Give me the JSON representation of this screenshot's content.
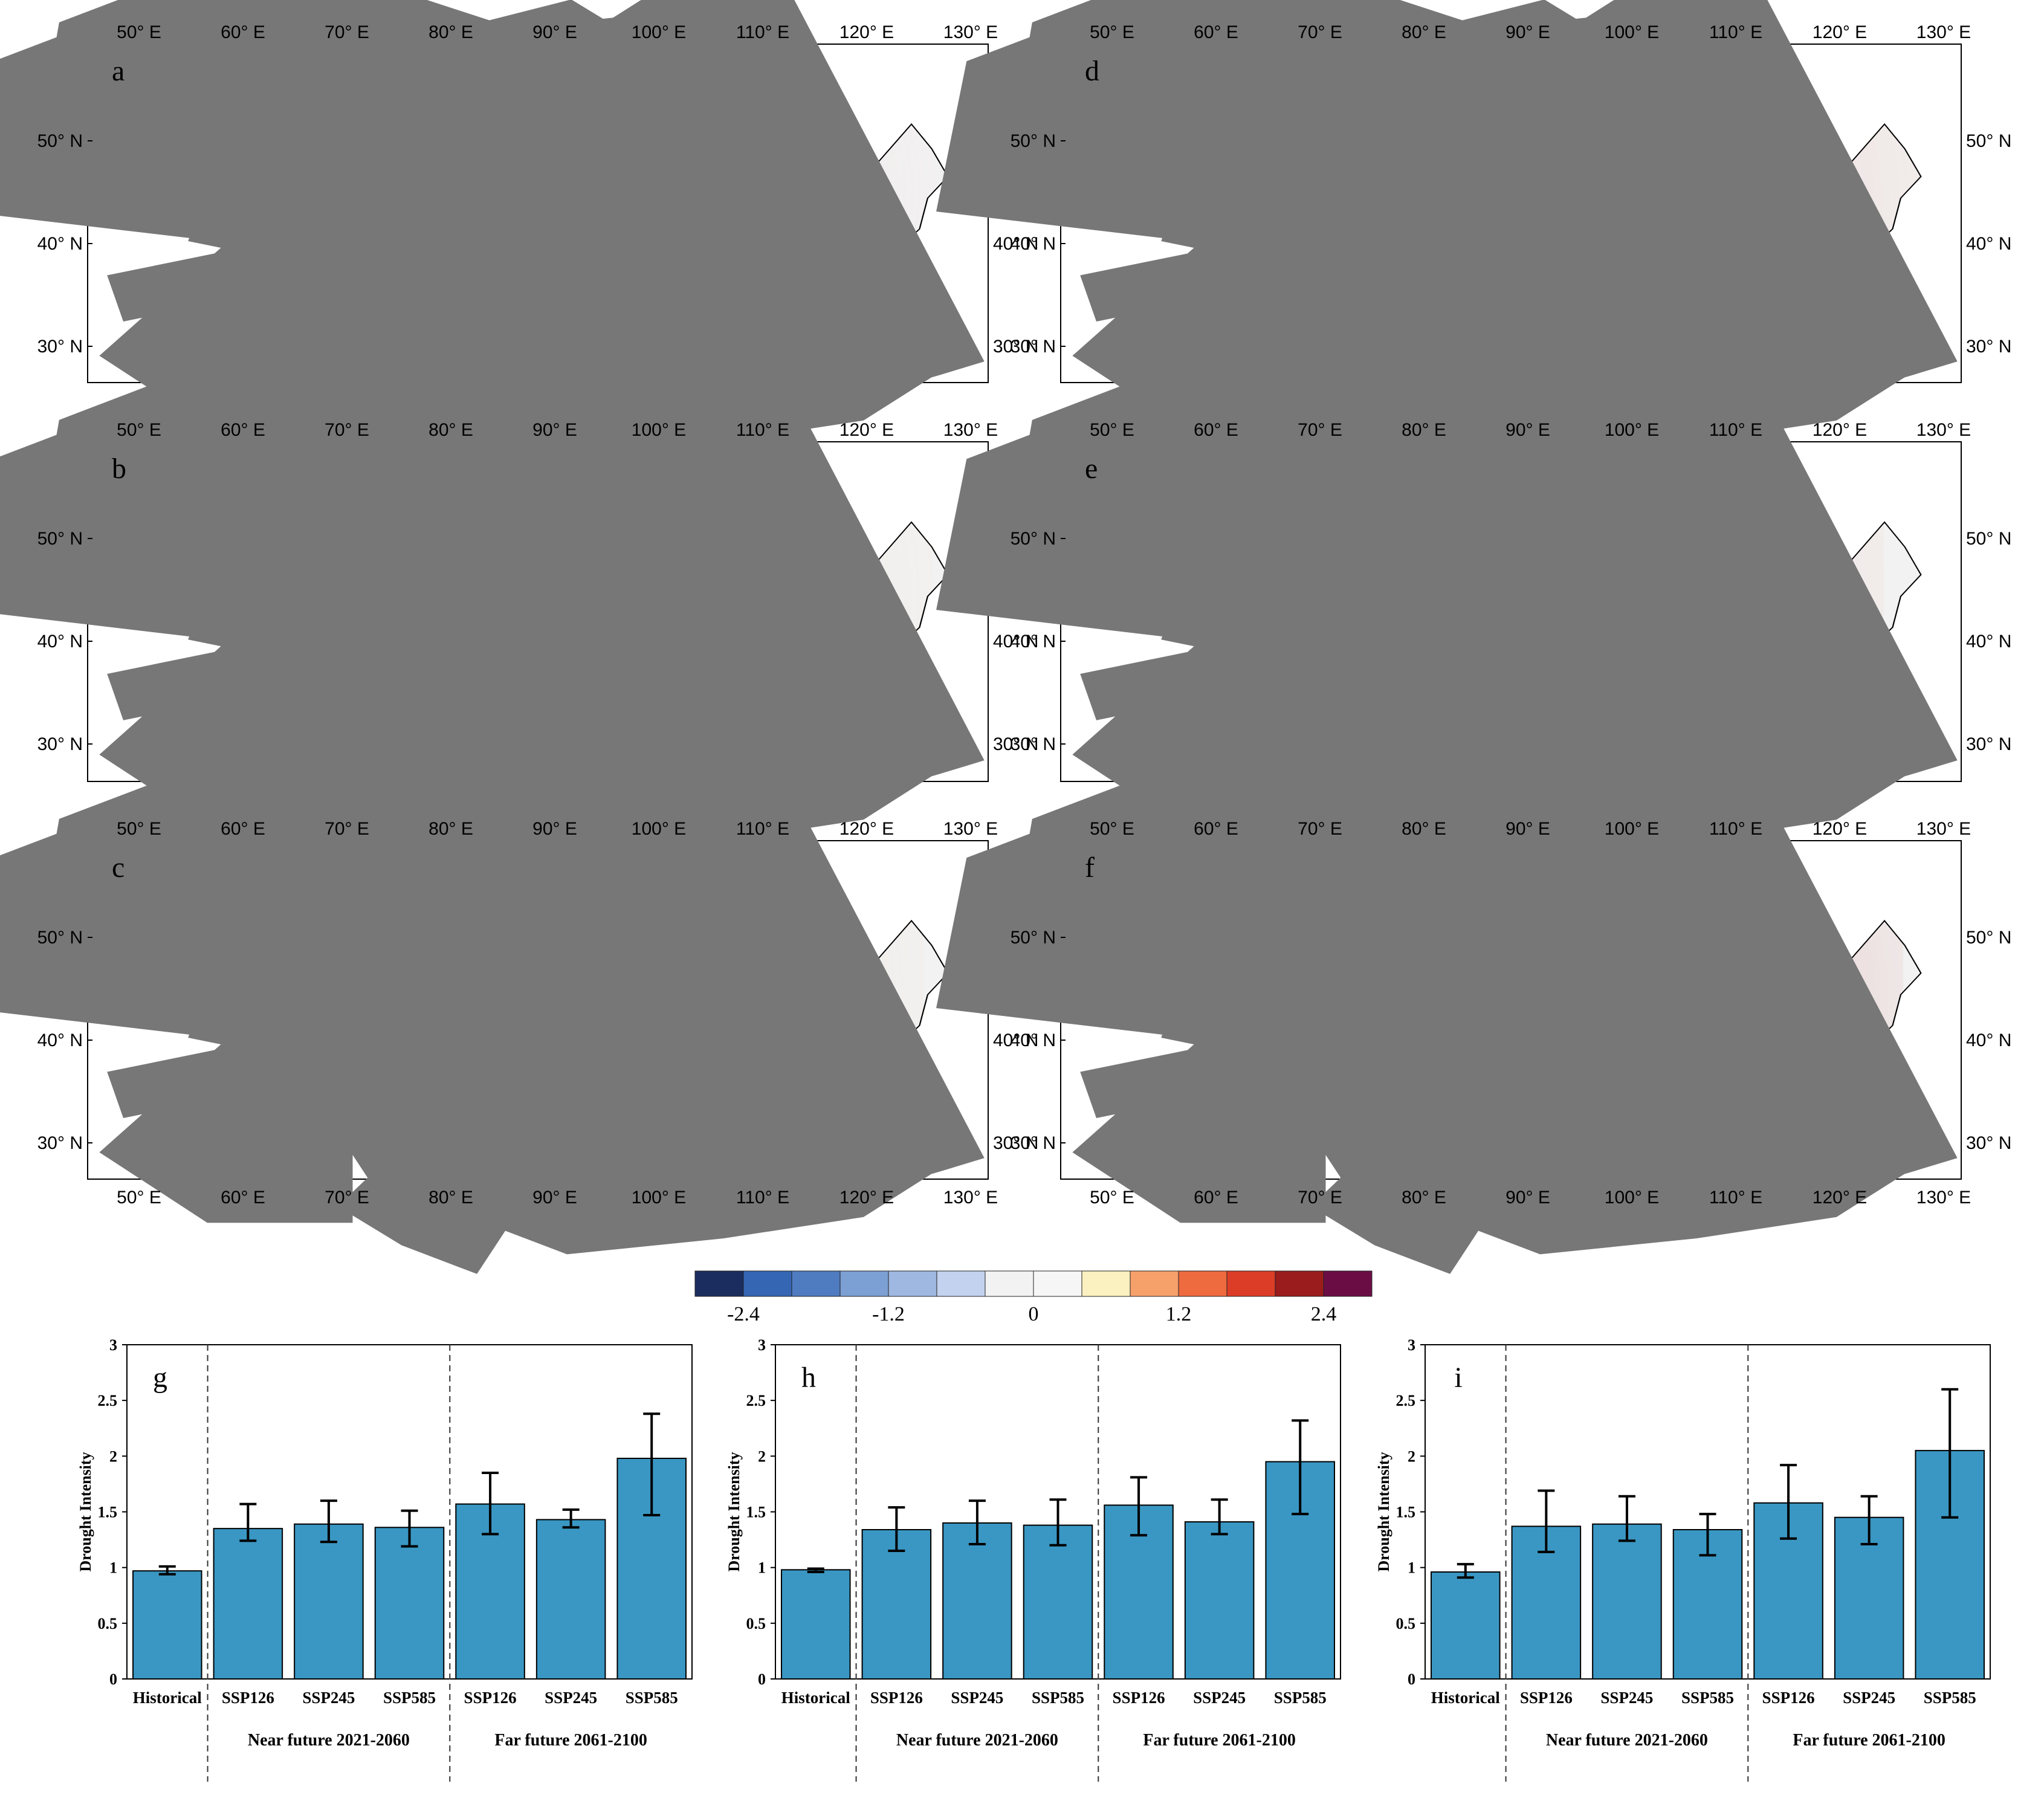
{
  "chart_data": [
    {
      "type": "map",
      "panels": [
        "a",
        "b",
        "c",
        "d",
        "e",
        "f"
      ],
      "lon_ticks": [
        "50° E",
        "60° E",
        "70° E",
        "80° E",
        "90° E",
        "100° E",
        "110° E",
        "120° E",
        "130° E"
      ],
      "lat_ticks": [
        "50° N",
        "40° N",
        "30° N"
      ],
      "colorbar": {
        "colors": [
          "#1a2d5e",
          "#3466b4",
          "#4f7bc0",
          "#7c9fd4",
          "#9fb8e2",
          "#c3d2ee",
          "#f2f2f2",
          "#f6f6f6",
          "#fbf0c0",
          "#f6a06a",
          "#ee6a3f",
          "#dc3d26",
          "#9b1c1c",
          "#6b0d45"
        ],
        "tick_labels": [
          "-2.4",
          "-1.2",
          "0",
          "1.2",
          "2.4"
        ],
        "range": [
          -2.8,
          2.8
        ]
      }
    },
    {
      "type": "bar",
      "panels": [
        "g",
        "h",
        "i"
      ],
      "ylabel": "Drought Intensity",
      "ylim": [
        0,
        3
      ],
      "yticks": [
        "0",
        "0.5",
        "1",
        "1.5",
        "2",
        "2.5",
        "3"
      ],
      "categories": [
        "Historical",
        "SSP126",
        "SSP245",
        "SSP585",
        "SSP126",
        "SSP245",
        "SSP585"
      ],
      "groups": [
        "Near future 2021-2060",
        "Far future 2061-2100"
      ],
      "bar_color": "#3a97c3",
      "series": [
        {
          "name": "g",
          "values": [
            0.97,
            1.35,
            1.39,
            1.36,
            1.57,
            1.43,
            1.98
          ],
          "err_low": [
            0.94,
            1.24,
            1.23,
            1.19,
            1.3,
            1.36,
            1.47
          ],
          "err_high": [
            1.01,
            1.57,
            1.6,
            1.51,
            1.85,
            1.52,
            2.38
          ]
        },
        {
          "name": "h",
          "values": [
            0.98,
            1.34,
            1.4,
            1.38,
            1.56,
            1.41,
            1.95
          ],
          "err_low": [
            0.96,
            1.15,
            1.21,
            1.2,
            1.29,
            1.3,
            1.48
          ],
          "err_high": [
            0.99,
            1.54,
            1.6,
            1.61,
            1.81,
            1.61,
            2.32
          ]
        },
        {
          "name": "i",
          "values": [
            0.96,
            1.37,
            1.39,
            1.34,
            1.58,
            1.45,
            2.05
          ],
          "err_low": [
            0.91,
            1.14,
            1.24,
            1.11,
            1.26,
            1.21,
            1.45
          ],
          "err_high": [
            1.03,
            1.69,
            1.64,
            1.48,
            1.92,
            1.64,
            2.6
          ]
        }
      ]
    }
  ]
}
